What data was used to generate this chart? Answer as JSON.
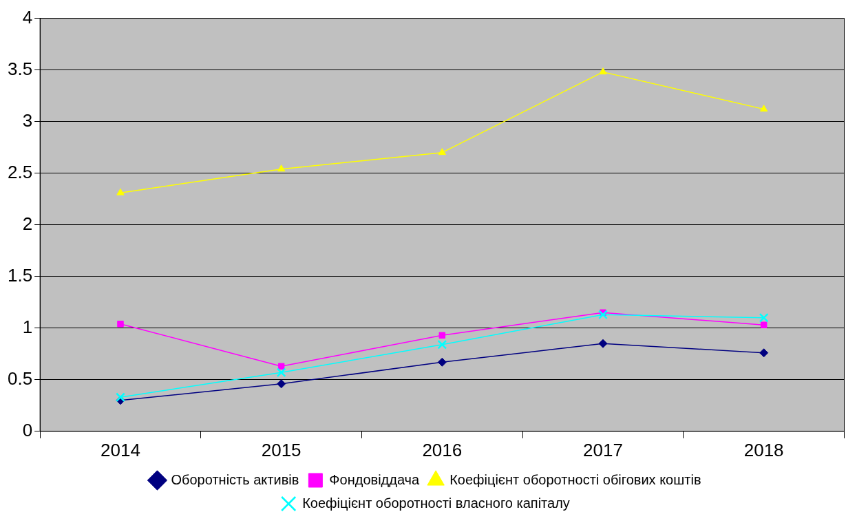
{
  "chart_data": {
    "type": "line",
    "categories": [
      "2014",
      "2015",
      "2016",
      "2017",
      "2018"
    ],
    "series": [
      {
        "name": "Оборотність активів",
        "color": "#000080",
        "marker": "diamond",
        "values": [
          0.3,
          0.46,
          0.67,
          0.85,
          0.76
        ]
      },
      {
        "name": "Фондовіддача",
        "color": "#ff00ff",
        "marker": "square",
        "values": [
          1.04,
          0.63,
          0.93,
          1.15,
          1.03
        ]
      },
      {
        "name": "Коефіцієнт оборотності обігових коштів",
        "color": "#ffff00",
        "marker": "triangle",
        "values": [
          2.31,
          2.54,
          2.7,
          3.48,
          3.12
        ]
      },
      {
        "name": "Коефіцієнт оборотності власного капіталу",
        "color": "#00ffff",
        "marker": "cross",
        "values": [
          0.33,
          0.57,
          0.84,
          1.13,
          1.1
        ]
      }
    ],
    "ylim": [
      0,
      4
    ],
    "yticks": [
      0,
      0.5,
      1,
      1.5,
      2,
      2.5,
      3,
      3.5,
      4
    ],
    "grid": "y",
    "legend": "bottom",
    "line_style": "solid"
  }
}
